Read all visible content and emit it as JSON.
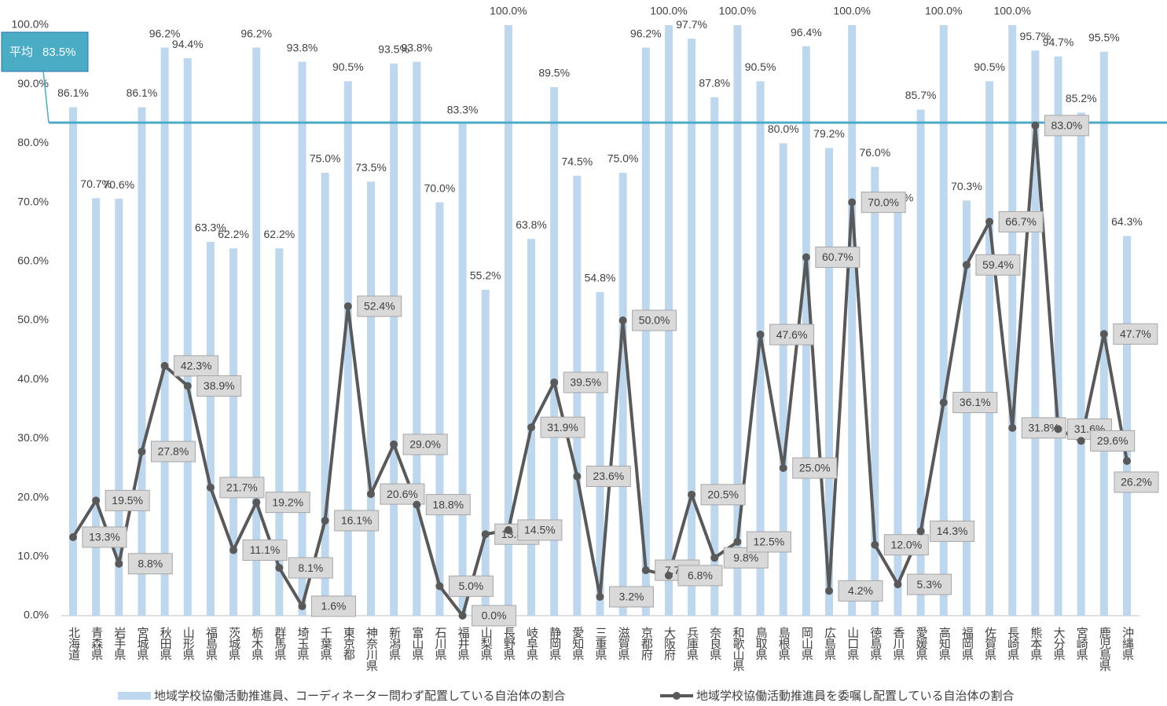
{
  "chart_data": {
    "type": "bar_line",
    "categories": [
      "北海道",
      "青森県",
      "岩手県",
      "宮城県",
      "秋田県",
      "山形県",
      "福島県",
      "茨城県",
      "栃木県",
      "群馬県",
      "埼玉県",
      "千葉県",
      "東京都",
      "神奈川県",
      "新潟県",
      "富山県",
      "石川県",
      "福井県",
      "山梨県",
      "長野県",
      "岐阜県",
      "静岡県",
      "愛知県",
      "三重県",
      "滋賀県",
      "京都府",
      "大阪府",
      "兵庫県",
      "奈良県",
      "和歌山県",
      "鳥取県",
      "島根県",
      "岡山県",
      "広島県",
      "山口県",
      "徳島県",
      "香川県",
      "愛媛県",
      "高知県",
      "福岡県",
      "佐賀県",
      "長崎県",
      "熊本県",
      "大分県",
      "宮崎県",
      "鹿児島県",
      "沖縄県"
    ],
    "series": [
      {
        "name": "地域学校協働活動推進員、コーディネーター問わず配置している自治体の割合",
        "kind": "bar",
        "color": "#bdd7ee",
        "values": [
          86.1,
          70.7,
          70.6,
          86.1,
          96.2,
          94.4,
          63.3,
          62.2,
          96.2,
          62.2,
          93.8,
          75.0,
          90.5,
          73.5,
          93.5,
          93.8,
          70.0,
          83.3,
          55.2,
          100.0,
          63.8,
          89.5,
          74.5,
          54.8,
          75.0,
          96.2,
          100.0,
          97.7,
          87.8,
          100.0,
          90.5,
          80.0,
          96.4,
          79.2,
          100.0,
          76.0,
          68.4,
          85.7,
          100.0,
          70.3,
          90.5,
          100.0,
          95.7,
          94.7,
          85.2,
          95.5,
          64.3
        ],
        "value_labels": [
          "86.1%",
          "70.7%",
          "70.6%",
          "86.1%",
          "96.2%",
          "94.4%",
          "63.3%",
          "62.2%",
          "96.2%",
          "62.2%",
          "93.8%",
          "75.0%",
          "90.5%",
          "73.5%",
          "93.5%",
          "93.8%",
          "70.0%",
          "83.3%",
          "55.2%",
          "100.0%",
          "63.8%",
          "89.5%",
          "74.5%",
          "54.8%",
          "75.0%",
          "96.2%",
          "100.0%",
          "97.7%",
          "87.8%",
          "100.0%",
          "90.5%",
          "80.0%",
          "96.4%",
          "79.2%",
          "100.0%",
          "76.0%",
          "68.4%",
          "85.7%",
          "100.0%",
          "70.3%",
          "90.5%",
          "100.0%",
          "95.7%",
          "94.7%",
          "85.2%",
          "95.5%",
          "64.3%"
        ]
      },
      {
        "name": "地域学校協働活動推進員を委嘱し配置している自治体の割合",
        "kind": "line",
        "color": "#595959",
        "values": [
          13.3,
          19.5,
          8.8,
          27.8,
          42.3,
          38.9,
          21.7,
          11.1,
          19.2,
          8.1,
          1.6,
          16.1,
          52.4,
          20.6,
          29.0,
          18.8,
          5.0,
          0.0,
          13.8,
          14.5,
          31.9,
          39.5,
          23.6,
          3.2,
          50.0,
          7.7,
          6.8,
          20.5,
          9.8,
          12.5,
          47.6,
          25.0,
          60.7,
          4.2,
          70.0,
          12.0,
          5.3,
          14.3,
          36.1,
          59.4,
          66.7,
          31.8,
          83.0,
          31.6,
          29.6,
          47.7,
          26.2
        ],
        "value_labels": [
          "13.3%",
          "19.5%",
          "8.8%",
          "27.8%",
          "42.3%",
          "38.9%",
          "21.7%",
          "11.1%",
          "19.2%",
          "8.1%",
          "1.6%",
          "16.1%",
          "52.4%",
          "20.6%",
          "29.0%",
          "18.8%",
          "5.0%",
          "0.0%",
          "13.8%",
          "14.5%",
          "31.9%",
          "39.5%",
          "23.6%",
          "3.2%",
          "50.0%",
          "7.7%",
          "6.8%",
          "20.5%",
          "9.8%",
          "12.5%",
          "47.6%",
          "25.0%",
          "60.7%",
          "4.2%",
          "70.0%",
          "12.0%",
          "5.3%",
          "14.3%",
          "36.1%",
          "59.4%",
          "66.7%",
          "31.8%",
          "83.0%",
          "31.6%",
          "29.6%",
          "47.7%",
          "26.2%"
        ]
      }
    ],
    "average": {
      "label": "平均",
      "value": 83.5,
      "value_label": "83.5%",
      "color": "#4bacc6"
    },
    "ylim": [
      0,
      100
    ],
    "yticks": [
      {
        "value": 0,
        "label": "0.0%"
      },
      {
        "value": 10,
        "label": "10.0%"
      },
      {
        "value": 20,
        "label": "20.0%"
      },
      {
        "value": 30,
        "label": "30.0%"
      },
      {
        "value": 40,
        "label": "40.0%"
      },
      {
        "value": 50,
        "label": "50.0%"
      },
      {
        "value": 60,
        "label": "60.0%"
      },
      {
        "value": 70,
        "label": "70.0%"
      },
      {
        "value": 80,
        "label": "80.0%"
      },
      {
        "value": 90,
        "label": "90.0%"
      },
      {
        "value": 100,
        "label": "100.0%"
      }
    ],
    "legend": "bottom"
  }
}
